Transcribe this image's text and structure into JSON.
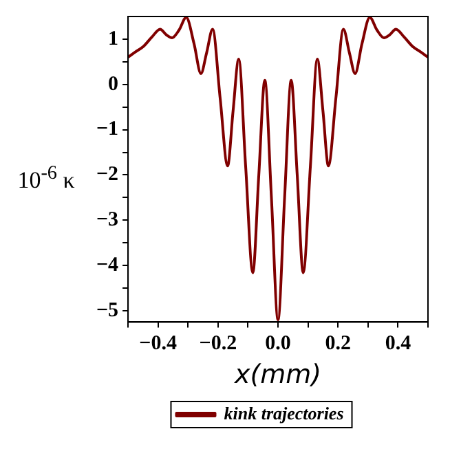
{
  "chart_data": {
    "type": "line",
    "xlabel": "x(mm)",
    "ylabel": "10$^{-6}$ κ",
    "x": [
      -0.5,
      -0.475,
      -0.45,
      -0.42,
      -0.393,
      -0.373,
      -0.353,
      -0.33,
      -0.306,
      -0.28,
      -0.257,
      -0.238,
      -0.218,
      -0.193,
      -0.168,
      -0.15,
      -0.131,
      -0.108,
      -0.084,
      -0.064,
      -0.044,
      -0.022,
      0,
      0.022,
      0.044,
      0.064,
      0.084,
      0.108,
      0.131,
      0.15,
      0.168,
      0.193,
      0.218,
      0.238,
      0.257,
      0.28,
      0.306,
      0.33,
      0.353,
      0.373,
      0.393,
      0.42,
      0.45,
      0.475,
      0.5
    ],
    "series": [
      {
        "name": "kink trajectories",
        "color": "#800000",
        "values": [
          0.6,
          0.72,
          0.83,
          1.05,
          1.22,
          1.1,
          1.03,
          1.2,
          1.48,
          0.9,
          0.24,
          0.7,
          1.22,
          -0.3,
          -1.8,
          -0.6,
          0.56,
          -1.8,
          -4.16,
          -2.0,
          0.09,
          -2.5,
          -5.2,
          -2.5,
          0.09,
          -2.0,
          -4.16,
          -1.8,
          0.56,
          -0.6,
          -1.8,
          -0.3,
          1.22,
          0.7,
          0.24,
          0.9,
          1.48,
          1.2,
          1.03,
          1.1,
          1.22,
          1.05,
          0.83,
          0.72,
          0.6
        ]
      }
    ],
    "xlim": [
      -0.5,
      0.5
    ],
    "xticks": [
      {
        "value": -0.5,
        "label": null
      },
      -0.4,
      {
        "value": -0.3,
        "label": null
      },
      -0.2,
      {
        "value": -0.1,
        "label": null
      },
      {
        "value": 0,
        "label": "0.0"
      },
      {
        "value": 0.1,
        "label": null
      },
      0.2,
      {
        "value": 0.3,
        "label": null
      },
      0.4,
      {
        "value": 0.5,
        "label": null
      }
    ],
    "ylim": [
      -5.25,
      1.5
    ],
    "yticks": [
      -5,
      {
        "value": -4.5,
        "label": null
      },
      -4,
      {
        "value": -3.5,
        "label": null
      },
      -3,
      {
        "value": -2.5,
        "label": null
      },
      -2,
      {
        "value": -1.5,
        "label": null
      },
      -1,
      {
        "value": -0.5,
        "label": null
      },
      0,
      {
        "value": 0.5,
        "label": null
      },
      1
    ],
    "grid": false,
    "legend": "bottom",
    "marker": "none",
    "line_style": "solid"
  }
}
